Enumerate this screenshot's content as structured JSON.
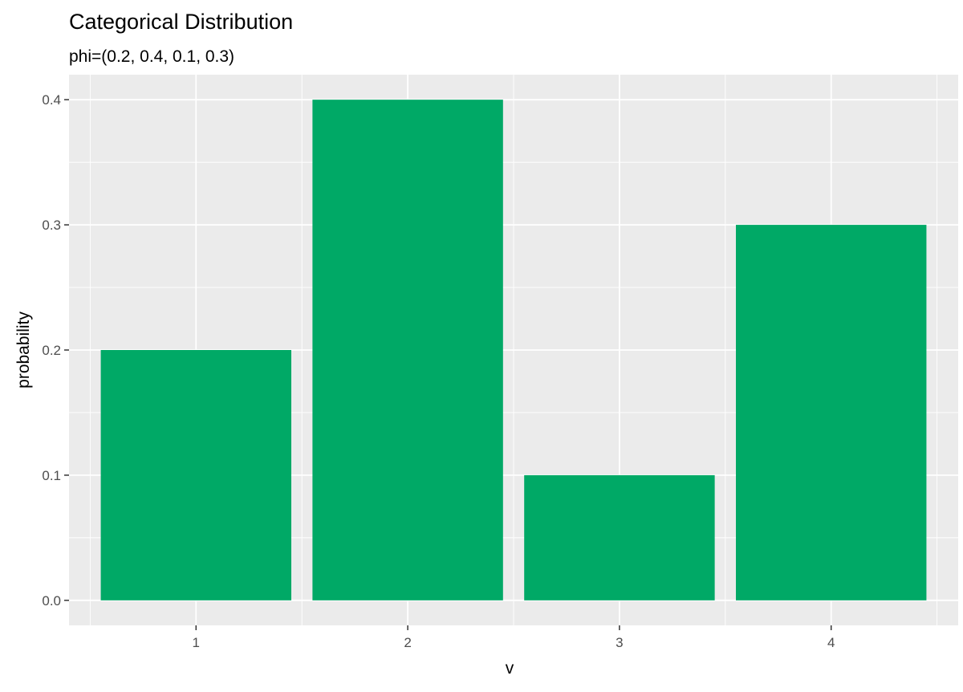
{
  "chart_data": {
    "type": "bar",
    "title": "Categorical Distribution",
    "subtitle": "phi=(0.2, 0.4, 0.1, 0.3)",
    "xlabel": "v",
    "ylabel": "probability",
    "categories": [
      "1",
      "2",
      "3",
      "4"
    ],
    "values": [
      0.2,
      0.4,
      0.1,
      0.3
    ],
    "ylim": [
      -0.02,
      0.42
    ],
    "yticks": [
      0.0,
      0.1,
      0.2,
      0.3,
      0.4
    ],
    "ytick_labels": [
      "0.0",
      "0.1",
      "0.2",
      "0.3",
      "0.4"
    ],
    "grid": true,
    "legend": "none",
    "colors": {
      "bar": "#00A966",
      "panel_background": "#EBEBEB",
      "grid": "#FFFFFF",
      "tick_mark": "#333333"
    }
  }
}
